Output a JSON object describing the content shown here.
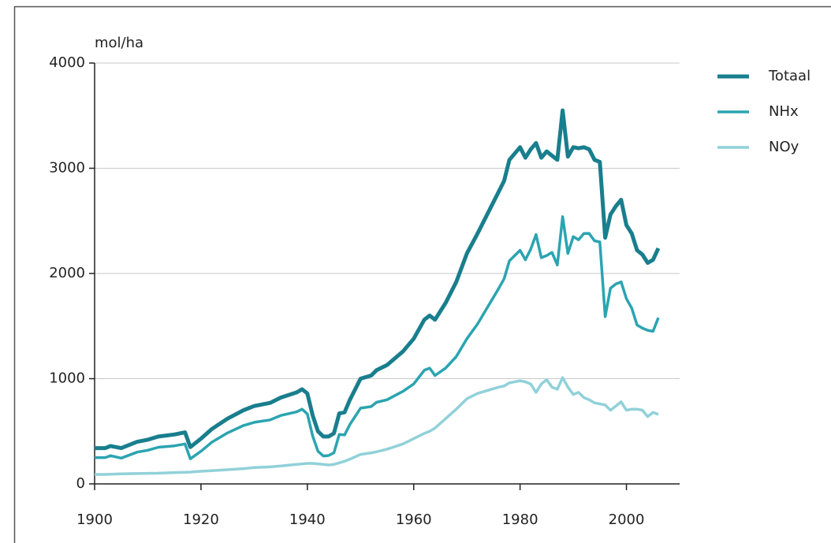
{
  "chart_data": {
    "type": "line",
    "y_label": "mol/ha",
    "x": [
      1900,
      1902,
      1903,
      1905,
      1908,
      1910,
      1912,
      1915,
      1917,
      1918,
      1920,
      1922,
      1925,
      1928,
      1930,
      1933,
      1935,
      1938,
      1939,
      1940,
      1941,
      1942,
      1943,
      1944,
      1945,
      1946,
      1947,
      1948,
      1950,
      1952,
      1953,
      1955,
      1958,
      1960,
      1962,
      1963,
      1964,
      1966,
      1968,
      1970,
      1972,
      1974,
      1976,
      1977,
      1978,
      1980,
      1981,
      1982,
      1983,
      1984,
      1985,
      1986,
      1987,
      1988,
      1989,
      1990,
      1991,
      1992,
      1993,
      1994,
      1995,
      1996,
      1997,
      1998,
      1999,
      2000,
      2001,
      2002,
      2003,
      2004,
      2005,
      2006
    ],
    "series": [
      {
        "name": "Totaal",
        "color": "#197e8d",
        "values": [
          340,
          340,
          360,
          340,
          400,
          420,
          450,
          470,
          490,
          350,
          430,
          520,
          620,
          700,
          740,
          770,
          820,
          870,
          900,
          860,
          650,
          500,
          450,
          450,
          480,
          670,
          680,
          800,
          1000,
          1030,
          1080,
          1130,
          1260,
          1380,
          1560,
          1600,
          1560,
          1720,
          1920,
          2190,
          2380,
          2580,
          2780,
          2880,
          3080,
          3200,
          3100,
          3180,
          3240,
          3100,
          3160,
          3120,
          3080,
          3550,
          3110,
          3200,
          3190,
          3200,
          3180,
          3080,
          3060,
          2340,
          2560,
          2640,
          2700,
          2460,
          2380,
          2220,
          2180,
          2100,
          2130,
          2240
        ]
      },
      {
        "name": "NHx",
        "color": "#2ba4b1",
        "values": [
          250,
          250,
          268,
          245,
          302,
          320,
          348,
          362,
          380,
          238,
          310,
          395,
          485,
          555,
          585,
          608,
          650,
          685,
          710,
          665,
          455,
          310,
          265,
          270,
          295,
          470,
          465,
          565,
          720,
          735,
          775,
          800,
          880,
          950,
          1080,
          1100,
          1030,
          1100,
          1210,
          1380,
          1520,
          1690,
          1860,
          1950,
          2120,
          2220,
          2130,
          2230,
          2370,
          2150,
          2170,
          2200,
          2080,
          2540,
          2190,
          2350,
          2320,
          2380,
          2380,
          2310,
          2300,
          1590,
          1860,
          1900,
          1920,
          1760,
          1670,
          1510,
          1480,
          1460,
          1450,
          1580
        ]
      },
      {
        "name": "NOy",
        "color": "#91d1d9",
        "values": [
          90,
          90,
          92,
          95,
          98,
          100,
          102,
          108,
          110,
          112,
          120,
          125,
          135,
          145,
          155,
          162,
          170,
          185,
          190,
          195,
          195,
          190,
          185,
          180,
          185,
          200,
          215,
          235,
          280,
          295,
          305,
          330,
          380,
          430,
          480,
          500,
          530,
          620,
          710,
          810,
          860,
          890,
          920,
          930,
          960,
          980,
          970,
          950,
          870,
          950,
          990,
          920,
          900,
          1010,
          920,
          850,
          870,
          820,
          800,
          770,
          760,
          750,
          700,
          740,
          780,
          700,
          710,
          710,
          700,
          640,
          680,
          660
        ]
      }
    ],
    "xlim": [
      1900,
      2010
    ],
    "xticks": [
      1900,
      1920,
      1940,
      1960,
      1980,
      2000
    ],
    "ylim": [
      0,
      4000
    ],
    "yticks": [
      0,
      1000,
      2000,
      3000,
      4000
    ],
    "grid": true,
    "legend": "right"
  }
}
